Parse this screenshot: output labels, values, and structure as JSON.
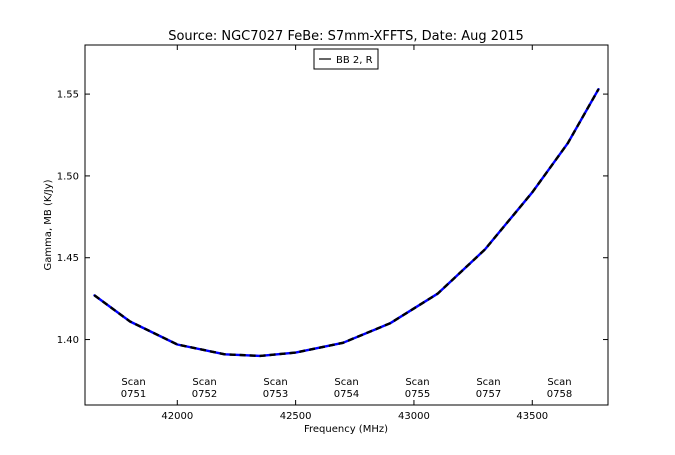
{
  "chart_data": {
    "type": "line",
    "title": "Source: NGC7027 FeBe: S7mm-XFFTS, Date: Aug 2015",
    "xlabel": "Frequency (MHz)",
    "ylabel": "Gamma, MB (K/Jy)",
    "xlim": [
      41610,
      43820
    ],
    "ylim": [
      1.36,
      1.58
    ],
    "xticks": [
      42000,
      42500,
      43000,
      43500
    ],
    "xtick_labels": [
      "42000",
      "42500",
      "43000",
      "43500"
    ],
    "yticks": [
      1.4,
      1.45,
      1.5,
      1.55
    ],
    "ytick_labels": [
      "1.40",
      "1.45",
      "1.50",
      "1.55"
    ],
    "grid": false,
    "legend_position": "upper center",
    "colors": {
      "series_line": "#0000ff",
      "series_dash": "#000000"
    },
    "series": [
      {
        "name": "BB 2, R",
        "x": [
          41650,
          41800,
          42000,
          42200,
          42350,
          42500,
          42700,
          42900,
          43100,
          43300,
          43500,
          43650,
          43780
        ],
        "y": [
          1.427,
          1.411,
          1.397,
          1.391,
          1.39,
          1.392,
          1.398,
          1.41,
          1.428,
          1.455,
          1.49,
          1.52,
          1.553
        ]
      }
    ],
    "annotations": [
      {
        "label": "Scan",
        "number": "0751",
        "x": 41815
      },
      {
        "label": "Scan",
        "number": "0752",
        "x": 42115
      },
      {
        "label": "Scan",
        "number": "0753",
        "x": 42415
      },
      {
        "label": "Scan",
        "number": "0754",
        "x": 42715
      },
      {
        "label": "Scan",
        "number": "0755",
        "x": 43015
      },
      {
        "label": "Scan",
        "number": "0757",
        "x": 43315
      },
      {
        "label": "Scan",
        "number": "0758",
        "x": 43615
      }
    ],
    "annotation_y": 1.365
  }
}
